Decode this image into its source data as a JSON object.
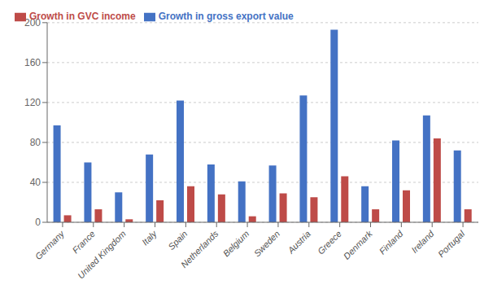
{
  "chart_data": {
    "type": "bar",
    "categories": [
      "Germany",
      "France",
      "United Kingdom",
      "Italy",
      "Spain",
      "Netherlands",
      "Belgium",
      "Sweden",
      "Austria",
      "Greece",
      "Denmark",
      "Finland",
      "Ireland",
      "Portugal"
    ],
    "series": [
      {
        "name": "Growth in gross export value",
        "color": "#4472C4",
        "values": [
          97,
          60,
          30,
          68,
          122,
          58,
          41,
          57,
          127,
          193,
          36,
          82,
          107,
          72
        ]
      },
      {
        "name": "Growth in GVC income",
        "color": "#BE4B48",
        "values": [
          7,
          13,
          3,
          22,
          36,
          28,
          6,
          29,
          25,
          46,
          13,
          32,
          84,
          13
        ]
      }
    ],
    "ylim": [
      0,
      200
    ],
    "yticks": [
      0,
      40,
      80,
      120,
      160,
      200
    ],
    "grid": true,
    "legend": "upper left"
  }
}
